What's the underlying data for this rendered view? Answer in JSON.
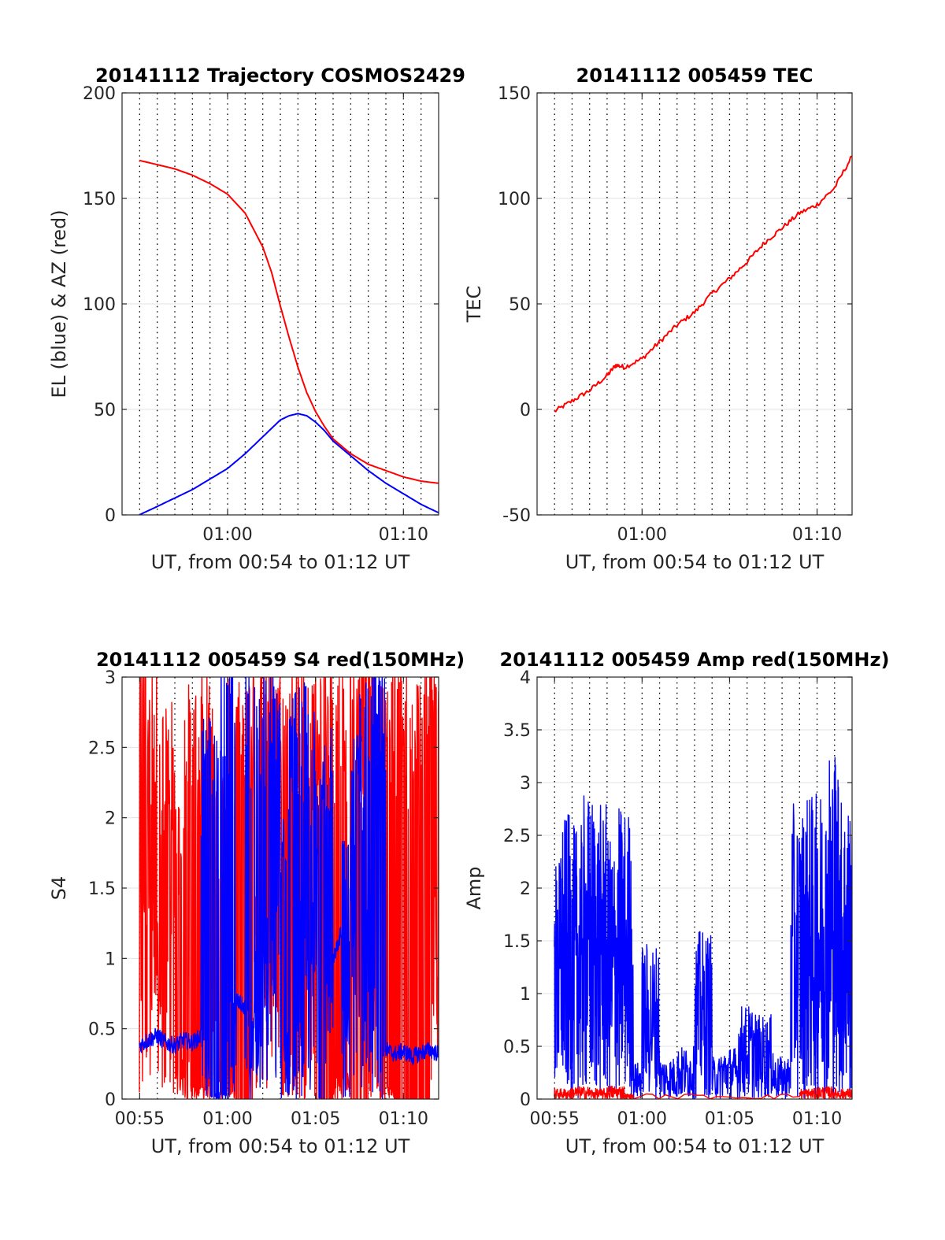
{
  "chart_data": [
    {
      "id": "p1",
      "type": "line",
      "title": "20141112 Trajectory COSMOS2429",
      "xlabel": "UT, from 00:54 to 01:12 UT",
      "ylabel": "EL (blue) & AZ (red)",
      "xlim": [
        "00:54",
        "01:12"
      ],
      "ylim": [
        0,
        200
      ],
      "yticks": [
        0,
        50,
        100,
        150,
        200
      ],
      "xticks": [
        {
          "t": "01:00",
          "label": "01:00"
        },
        {
          "t": "01:10",
          "label": "01:10"
        }
      ],
      "vgrid_start": "00:55",
      "vgrid_end": "01:11",
      "vgrid_step_min": 1,
      "hgrid": true,
      "series": [
        {
          "color": "#ff0000",
          "x": [
            "00:54:59",
            "00:56:00",
            "00:57:00",
            "00:58:00",
            "00:59:00",
            "01:00:00",
            "01:01:00",
            "01:02:00",
            "01:02:30",
            "01:03:00",
            "01:03:30",
            "01:04:00",
            "01:04:30",
            "01:05:00",
            "01:05:30",
            "01:06:00",
            "01:07:00",
            "01:08:00",
            "01:09:00",
            "01:10:00",
            "01:11:00",
            "01:12:00"
          ],
          "y": [
            168,
            166,
            164,
            161,
            157,
            152,
            143,
            127,
            115,
            99,
            84,
            70,
            58,
            49,
            42,
            36,
            29,
            24,
            21,
            18,
            16,
            15
          ]
        },
        {
          "color": "#0000ff",
          "x": [
            "00:54:59",
            "00:56:00",
            "00:57:00",
            "00:58:00",
            "00:59:00",
            "01:00:00",
            "01:01:00",
            "01:02:00",
            "01:02:30",
            "01:03:00",
            "01:03:30",
            "01:04:00",
            "01:04:30",
            "01:05:00",
            "01:05:30",
            "01:06:00",
            "01:07:00",
            "01:08:00",
            "01:09:00",
            "01:10:00",
            "01:11:00",
            "01:12:00"
          ],
          "y": [
            0,
            4,
            8,
            12,
            17,
            22,
            29,
            37,
            41,
            45,
            47,
            48,
            47,
            44,
            40,
            35,
            28,
            21,
            15,
            10,
            5,
            1
          ]
        }
      ]
    },
    {
      "id": "p2",
      "type": "line",
      "title": "20141112 005459 TEC",
      "xlabel": "UT, from 00:54 to 01:12 UT",
      "ylabel": "TEC",
      "xlim": [
        "00:54",
        "01:12"
      ],
      "ylim": [
        -50,
        150
      ],
      "yticks": [
        -50,
        0,
        50,
        100,
        150
      ],
      "xticks": [
        {
          "t": "01:00",
          "label": "01:00"
        },
        {
          "t": "01:10",
          "label": "01:10"
        }
      ],
      "vgrid_start": "00:55",
      "vgrid_end": "01:11",
      "vgrid_step_min": 1,
      "hgrid": true,
      "series": [
        {
          "color": "#ff0000",
          "x": [
            "00:54:59",
            "00:56:00",
            "00:57:00",
            "00:58:00",
            "00:58:30",
            "00:59:00",
            "01:00:00",
            "01:01:00",
            "01:02:00",
            "01:03:00",
            "01:04:00",
            "01:05:00",
            "01:06:00",
            "01:07:00",
            "01:08:00",
            "01:09:00",
            "01:10:00",
            "01:11:00",
            "01:12:00"
          ],
          "y": [
            -1,
            4,
            9,
            16,
            21,
            20,
            24,
            32,
            40,
            46,
            55,
            62,
            70,
            79,
            86,
            93,
            97,
            105,
            120
          ]
        }
      ]
    },
    {
      "id": "p3",
      "type": "line",
      "title": "20141112 005459 S4 red(150MHz)",
      "xlabel": "UT, from 00:54 to 01:12 UT",
      "ylabel": "S4",
      "xlim": [
        "00:54",
        "01:12"
      ],
      "ylim": [
        0,
        3
      ],
      "yticks": [
        0,
        0.5,
        1,
        1.5,
        2,
        2.5,
        3
      ],
      "xticks": [
        {
          "t": "00:55",
          "label": "00:55"
        },
        {
          "t": "01:00",
          "label": "01:00"
        },
        {
          "t": "01:05",
          "label": "01:05"
        },
        {
          "t": "01:10",
          "label": "01:10"
        }
      ],
      "vgrid_start": "00:55",
      "vgrid_end": "01:11",
      "vgrid_step_min": 1,
      "hgrid": true,
      "series": [
        {
          "color": "#ff0000",
          "x": [
            "00:54:59",
            "00:55:30",
            "00:56:00",
            "00:56:30",
            "00:57:00",
            "00:57:30",
            "00:58:00",
            "00:58:30",
            "00:59:00",
            "00:59:30",
            "01:00:00",
            "01:00:30",
            "01:01:00",
            "01:01:30",
            "01:02:00",
            "01:02:30",
            "01:03:00",
            "01:03:30",
            "01:04:00",
            "01:04:30",
            "01:05:00",
            "01:05:30",
            "01:06:00",
            "01:06:30",
            "01:07:00",
            "01:07:30",
            "01:08:00",
            "01:08:30",
            "01:09:00",
            "01:09:30",
            "01:10:00",
            "01:10:30",
            "01:11:00",
            "01:11:30",
            "01:12:00"
          ],
          "y": [
            3,
            2.8,
            2.5,
            2.6,
            2.0,
            0.3,
            2.7,
            0.1,
            2.9,
            2.2,
            0.3,
            2.8,
            0,
            2.9,
            3,
            2.6,
            2.8,
            0.4,
            3,
            2.5,
            2.9,
            0,
            3,
            0.2,
            2.9,
            0,
            3,
            2.7,
            0.1,
            3,
            0,
            2.8,
            0,
            3,
            2.9
          ]
        },
        {
          "color": "#0000ff",
          "x": [
            "00:54:59",
            "00:55:30",
            "00:56:00",
            "00:56:30",
            "00:57:00",
            "00:57:30",
            "00:58:00",
            "00:58:30",
            "00:59:00",
            "00:59:30",
            "01:00:00",
            "01:00:30",
            "01:01:00",
            "01:01:30",
            "01:02:00",
            "01:02:30",
            "01:03:00",
            "01:03:30",
            "01:04:00",
            "01:04:30",
            "01:05:00",
            "01:05:30",
            "01:06:00",
            "01:06:30",
            "01:07:00",
            "01:07:30",
            "01:08:00",
            "01:08:30",
            "01:09:00",
            "01:09:30",
            "01:10:00",
            "01:10:30",
            "01:11:00",
            "01:11:30",
            "01:12:00"
          ],
          "y": [
            0.38,
            0.42,
            0.45,
            0.4,
            0.38,
            0.42,
            0.4,
            0.45,
            2.5,
            0.05,
            2.9,
            0.7,
            0.65,
            2.8,
            2.2,
            2.9,
            1.9,
            0.6,
            2.7,
            2.6,
            1.7,
            2.4,
            1.0,
            1.2,
            1.8,
            2.4,
            2.7,
            2.9,
            0.35,
            0.32,
            0.34,
            0.3,
            0.33,
            0.35,
            0.32
          ]
        }
      ]
    },
    {
      "id": "p4",
      "type": "line",
      "title": "20141112 005459 Amp red(150MHz)",
      "xlabel": "UT, from 00:54 to 01:12 UT",
      "ylabel": "Amp",
      "xlim": [
        "00:54",
        "01:12"
      ],
      "ylim": [
        0,
        4
      ],
      "yticks": [
        0,
        0.5,
        1,
        1.5,
        2,
        2.5,
        3,
        3.5,
        4
      ],
      "xticks": [
        {
          "t": "00:55",
          "label": "00:55"
        },
        {
          "t": "01:00",
          "label": "01:00"
        },
        {
          "t": "01:05",
          "label": "01:05"
        },
        {
          "t": "01:10",
          "label": "01:10"
        }
      ],
      "vgrid_start": "00:55",
      "vgrid_end": "01:11",
      "vgrid_step_min": 1,
      "hgrid": true,
      "series": [
        {
          "color": "#0000ff",
          "x": [
            "00:54:59",
            "00:55:20",
            "00:55:40",
            "00:56:00",
            "00:56:20",
            "00:56:40",
            "00:57:00",
            "00:57:20",
            "00:57:40",
            "00:58:00",
            "00:58:20",
            "00:58:40",
            "00:59:00",
            "00:59:30",
            "01:00:00",
            "01:00:30",
            "01:01:00",
            "01:01:30",
            "01:02:00",
            "01:02:30",
            "01:03:00",
            "01:03:30",
            "01:04:00",
            "01:04:30",
            "01:05:00",
            "01:05:30",
            "01:06:00",
            "01:06:30",
            "01:07:00",
            "01:07:30",
            "01:08:00",
            "01:08:30",
            "01:09:00",
            "01:09:20",
            "01:09:40",
            "01:10:00",
            "01:10:20",
            "01:10:40",
            "01:11:00",
            "01:11:20",
            "01:11:40",
            "01:12:00"
          ],
          "y": [
            2.3,
            0.1,
            2.7,
            0.2,
            2.6,
            0.1,
            2.9,
            0.3,
            2.8,
            0.1,
            2.5,
            0.2,
            2.8,
            0.3,
            0.2,
            1.5,
            0.3,
            0.4,
            0.3,
            0.5,
            0.2,
            1.6,
            0.3,
            0.4,
            0.5,
            0.3,
            0.9,
            0.4,
            0.8,
            0.3,
            0.4,
            0.35,
            2.8,
            0.2,
            2.9,
            0.1,
            3.0,
            0.2,
            3.4,
            0.1,
            2.9,
            2.5
          ]
        },
        {
          "color": "#ff0000",
          "x": [
            "00:54:59",
            "00:55:30",
            "00:56:00",
            "00:56:30",
            "00:57:00",
            "00:57:30",
            "00:58:00",
            "00:58:30",
            "00:59:00",
            "00:59:30",
            "01:09:00",
            "01:09:30",
            "01:10:00",
            "01:10:30",
            "01:11:00",
            "01:11:30",
            "01:12:00"
          ],
          "y": [
            0.05,
            0.1,
            0.03,
            0.12,
            0.06,
            0.1,
            0.04,
            0.13,
            0.05,
            0.02,
            0.05,
            0.1,
            0.04,
            0.12,
            0.06,
            0.1,
            0.08
          ]
        }
      ]
    }
  ]
}
